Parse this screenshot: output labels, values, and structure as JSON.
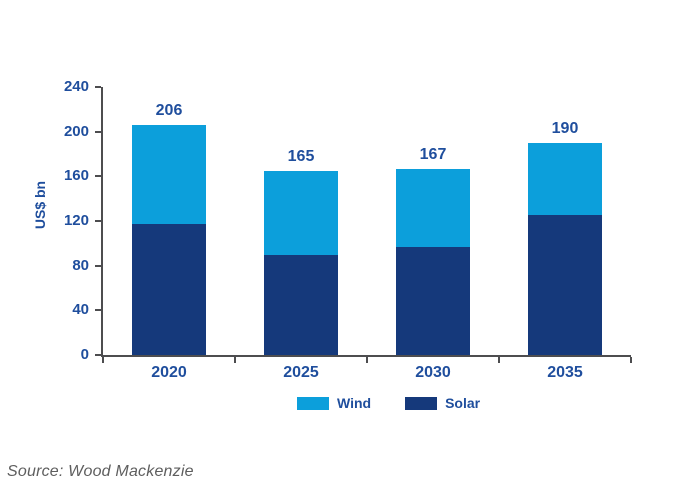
{
  "chart_data": {
    "type": "bar",
    "stacked": true,
    "categories": [
      "2020",
      "2025",
      "2030",
      "2035"
    ],
    "series": [
      {
        "name": "Wind",
        "color": "#0c9fdb",
        "values": [
          89,
          75,
          70,
          65
        ]
      },
      {
        "name": "Solar",
        "color": "#15397b",
        "values": [
          117,
          90,
          97,
          125
        ]
      }
    ],
    "totals": [
      206,
      165,
      167,
      190
    ],
    "ylabel": "US$ bn",
    "ylim": [
      0,
      240
    ],
    "yticks": [
      0,
      40,
      80,
      120,
      160,
      200,
      240
    ],
    "grid": false,
    "legend_position": "bottom-center",
    "stack_bottom_series": "Solar"
  },
  "legend": {
    "items": [
      {
        "label": "Wind",
        "color": "#0c9fdb"
      },
      {
        "label": "Solar",
        "color": "#15397b"
      }
    ]
  },
  "source": {
    "label": "Source: Wood Mackenzie"
  },
  "colors": {
    "wind": "#0c9fdb",
    "solar": "#15397b",
    "text_navy": "#1f4e9d",
    "axis": "#4d4d4f",
    "source_text": "#5e5e5e",
    "background": "#ffffff"
  }
}
